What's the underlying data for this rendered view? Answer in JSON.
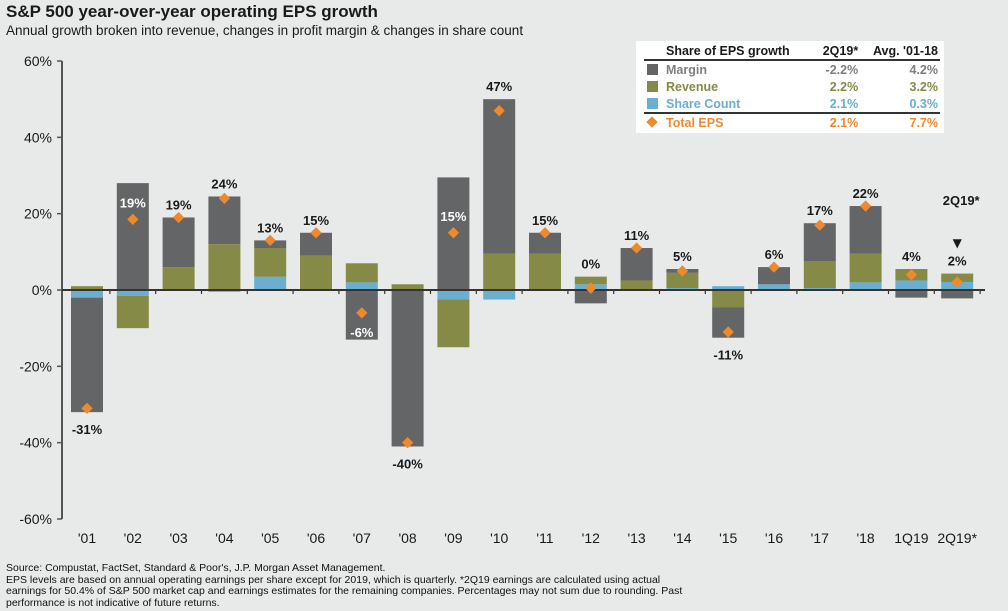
{
  "header": {
    "title": "S&P 500 year-over-year operating EPS growth",
    "subtitle": "Annual growth broken into revenue, changes in profit margin & changes in share count"
  },
  "colors": {
    "margin": "#646566",
    "revenue": "#868a47",
    "share_count": "#6aaed0",
    "total_eps": "#ee8a2e",
    "axis": "#555555",
    "background": "#e8e9e9"
  },
  "legend": {
    "header": [
      "Share of EPS growth",
      "2Q19*",
      "Avg. '01-18"
    ],
    "rows": [
      {
        "name": "Margin",
        "q": "-2.2%",
        "avg": "4.2%",
        "color": "#808080",
        "text_color": "#7f7f7f"
      },
      {
        "name": "Revenue",
        "q": "2.2%",
        "avg": "3.2%",
        "color": "#868a47",
        "text_color": "#868a47"
      },
      {
        "name": "Share Count",
        "q": "2.1%",
        "avg": "0.3%",
        "color": "#6aaed0",
        "text_color": "#6aaed0"
      }
    ],
    "total": {
      "name": "Total EPS",
      "q": "2.1%",
      "avg": "7.7%",
      "color": "#ee8a2e"
    }
  },
  "chart_data": {
    "type": "bar",
    "stacked": true,
    "title": "S&P 500 year-over-year operating EPS growth",
    "subtitle": "Annual growth broken into revenue, changes in profit margin & changes in share count",
    "xlabel": "",
    "ylabel": "",
    "ylim": [
      -60,
      60
    ],
    "yticks": [
      -60,
      -40,
      -20,
      0,
      20,
      40,
      60
    ],
    "ytick_labels": [
      "-60%",
      "-40%",
      "-20%",
      "0%",
      "20%",
      "40%",
      "60%"
    ],
    "grid": false,
    "legend_position": "top-right",
    "categories": [
      "'01",
      "'02",
      "'03",
      "'04",
      "'05",
      "'06",
      "'07",
      "'08",
      "'09",
      "'10",
      "'11",
      "'12",
      "'13",
      "'14",
      "'15",
      "'16",
      "'17",
      "'18",
      "1Q19",
      "2Q19*"
    ],
    "series": [
      {
        "name": "Share Count",
        "values": [
          -2,
          -1.5,
          0,
          -0.5,
          3.5,
          0,
          2,
          0,
          -2.5,
          -2.5,
          0,
          1.5,
          0,
          0.5,
          1,
          1.5,
          0.5,
          2,
          2.5,
          2.1
        ]
      },
      {
        "name": "Revenue",
        "values": [
          1,
          -8.5,
          6,
          12,
          7.5,
          9,
          5,
          1.5,
          -12.5,
          9.5,
          9.5,
          2,
          2.5,
          4,
          -4.5,
          0,
          7,
          7.5,
          3,
          2.2
        ]
      },
      {
        "name": "Margin",
        "values": [
          -30,
          28,
          13,
          12.5,
          2,
          6,
          -13,
          -41,
          29.5,
          40.5,
          5.5,
          -3.5,
          8.5,
          1,
          -8,
          4.5,
          10,
          12.5,
          -2,
          -2.2
        ]
      },
      {
        "name": "Total EPS",
        "type": "marker",
        "values": [
          -31,
          18.5,
          19,
          24,
          13,
          15,
          -6,
          -40,
          15,
          47,
          15,
          0.5,
          11,
          5,
          -11,
          6,
          17,
          22,
          4,
          2.1
        ]
      }
    ],
    "data_labels": [
      "-31%",
      "19%",
      "19%",
      "24%",
      "13%",
      "15%",
      "-6%",
      "-40%",
      "15%",
      "47%",
      "15%",
      "0%",
      "11%",
      "5%",
      "-11%",
      "6%",
      "17%",
      "22%",
      "4%",
      "2%"
    ],
    "label_inside": [
      false,
      true,
      false,
      false,
      false,
      false,
      true,
      false,
      true,
      false,
      false,
      false,
      false,
      false,
      false,
      false,
      false,
      false,
      false,
      false
    ],
    "annotation": {
      "text": "2Q19*",
      "category": "2Q19*",
      "arrow": "▼"
    }
  },
  "footer": {
    "lines": [
      "Source: Compustat, FactSet, Standard & Poor's, J.P. Morgan Asset Management.",
      "EPS levels are based on annual operating earnings per share except for 2019, which is quarterly. *2Q19 earnings are calculated using actual",
      "earnings for 50.4% of S&P 500 market cap and earnings estimates for the remaining companies. Percentages may not sum due to rounding. Past",
      "performance is not indicative of future returns."
    ]
  }
}
